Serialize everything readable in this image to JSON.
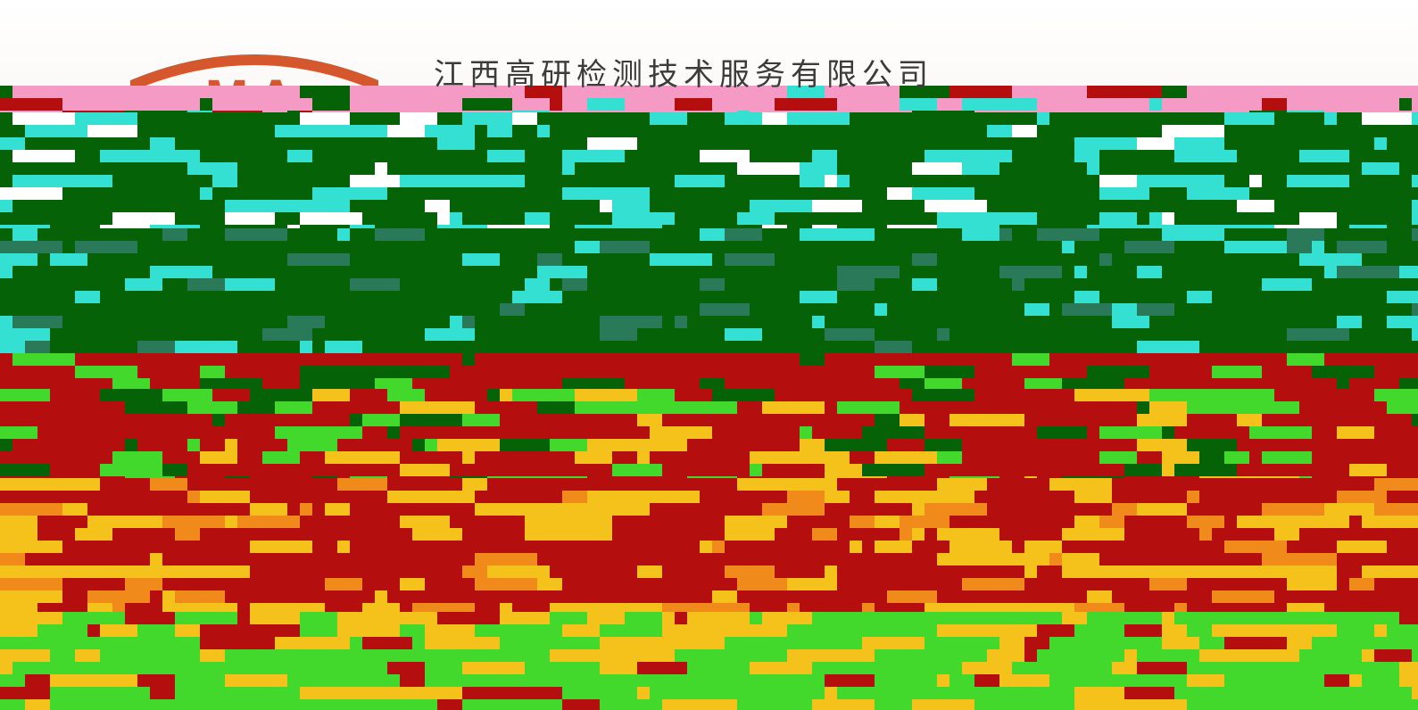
{
  "header": {
    "company_name": "江西高研检测技术服务有限公司",
    "logo_text": "MA",
    "logo_color": "#d4572e"
  },
  "colors": {
    "dark_green": "#066206",
    "cyan": "#33e0d2",
    "red": "#b40e0e",
    "yellow": "#f5c21c",
    "lime": "#42d92c",
    "pink": "#f59ac4"
  }
}
